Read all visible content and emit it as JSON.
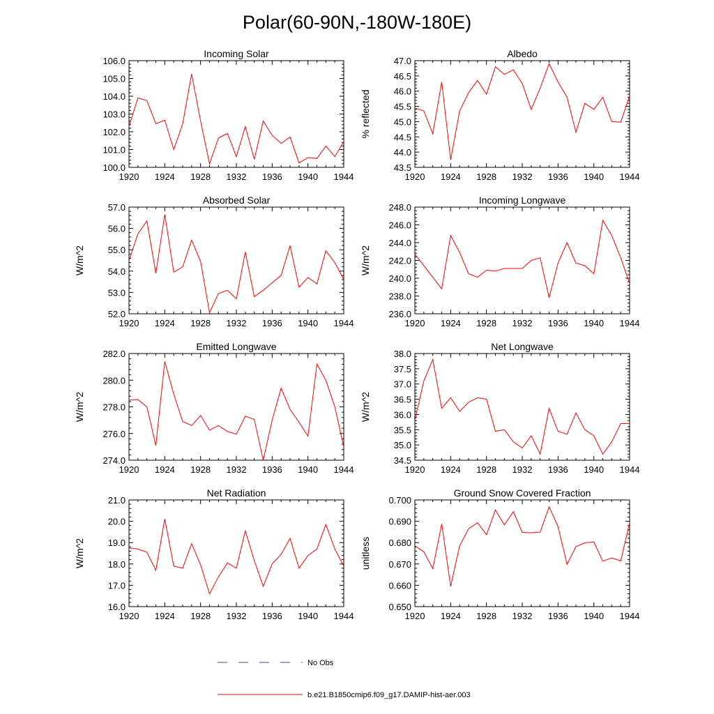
{
  "title": "Polar(60-90N,-180W-180E)",
  "colors": {
    "series": "#ff0000",
    "obs": "#4040a0",
    "axis": "#000000"
  },
  "legend": {
    "obs_label": "No Obs",
    "model_label": "b.e21.B1850cmip6.f09_g17.DAMIP-hist-aer.003"
  },
  "chart_data": [
    {
      "type": "line",
      "title": "Incoming Solar",
      "ylabel": "",
      "xlim": [
        1920,
        1944
      ],
      "ylim": [
        100.0,
        106.0
      ],
      "xticks": [
        "1920",
        "1924",
        "1928",
        "1932",
        "1936",
        "1940",
        "1944"
      ],
      "yticks": [
        "100.0",
        "101.0",
        "102.0",
        "103.0",
        "104.0",
        "105.0",
        "106.0"
      ],
      "x": [
        1920,
        1921,
        1922,
        1923,
        1924,
        1925,
        1926,
        1927,
        1928,
        1929,
        1930,
        1931,
        1932,
        1933,
        1934,
        1935,
        1936,
        1937,
        1938,
        1939,
        1940,
        1941,
        1942,
        1943,
        1944
      ],
      "series": [
        {
          "name": "b.e21.B1850cmip6.f09_g17.DAMIP-hist-aer.003",
          "values": [
            102.3,
            103.9,
            103.75,
            102.45,
            102.65,
            101.0,
            102.45,
            105.25,
            102.6,
            100.2,
            101.65,
            101.9,
            100.6,
            102.3,
            100.45,
            102.6,
            101.8,
            101.35,
            101.7,
            100.25,
            100.55,
            100.5,
            101.2,
            100.6,
            101.45
          ]
        }
      ]
    },
    {
      "type": "line",
      "title": "Albedo",
      "ylabel": "% reflected",
      "xlim": [
        1920,
        1944
      ],
      "ylim": [
        43.5,
        47.0
      ],
      "xticks": [
        "1920",
        "1924",
        "1928",
        "1932",
        "1936",
        "1940",
        "1944"
      ],
      "yticks": [
        "43.5",
        "44.0",
        "44.5",
        "45.0",
        "45.5",
        "46.0",
        "46.5",
        "47.0"
      ],
      "x": [
        1920,
        1921,
        1922,
        1923,
        1924,
        1925,
        1926,
        1927,
        1928,
        1929,
        1930,
        1931,
        1932,
        1933,
        1934,
        1935,
        1936,
        1937,
        1938,
        1939,
        1940,
        1941,
        1942,
        1943,
        1944
      ],
      "series": [
        {
          "name": "b.e21.B1850cmip6.f09_g17.DAMIP-hist-aer.003",
          "values": [
            45.45,
            45.35,
            44.6,
            46.3,
            43.75,
            45.35,
            45.95,
            46.35,
            45.9,
            46.8,
            46.55,
            46.7,
            46.25,
            45.4,
            46.1,
            46.9,
            46.3,
            45.8,
            44.65,
            45.6,
            45.4,
            45.8,
            45.0,
            44.98,
            45.85
          ]
        }
      ]
    },
    {
      "type": "line",
      "title": "Absorbed Solar",
      "ylabel": "W/m^2",
      "xlim": [
        1920,
        1944
      ],
      "ylim": [
        52.0,
        57.0
      ],
      "xticks": [
        "1920",
        "1924",
        "1928",
        "1932",
        "1936",
        "1940",
        "1944"
      ],
      "yticks": [
        "52.0",
        "53.0",
        "54.0",
        "55.0",
        "56.0",
        "57.0"
      ],
      "x": [
        1920,
        1921,
        1922,
        1923,
        1924,
        1925,
        1926,
        1927,
        1928,
        1929,
        1930,
        1931,
        1932,
        1933,
        1934,
        1935,
        1936,
        1937,
        1938,
        1939,
        1940,
        1941,
        1942,
        1943,
        1944
      ],
      "series": [
        {
          "name": "b.e21.B1850cmip6.f09_g17.DAMIP-hist-aer.003",
          "values": [
            54.5,
            55.75,
            56.35,
            53.9,
            56.65,
            53.95,
            54.2,
            55.45,
            54.45,
            52.05,
            52.95,
            53.1,
            52.7,
            54.9,
            52.8,
            53.1,
            53.45,
            53.8,
            55.2,
            53.25,
            53.7,
            53.4,
            54.95,
            54.4,
            53.6
          ]
        }
      ]
    },
    {
      "type": "line",
      "title": "Incoming Longwave",
      "ylabel": "W/m^2",
      "xlim": [
        1920,
        1944
      ],
      "ylim": [
        236.0,
        248.0
      ],
      "xticks": [
        "1920",
        "1924",
        "1928",
        "1932",
        "1936",
        "1940",
        "1944"
      ],
      "yticks": [
        "236.0",
        "238.0",
        "240.0",
        "242.0",
        "244.0",
        "246.0",
        "248.0"
      ],
      "x": [
        1920,
        1921,
        1922,
        1923,
        1924,
        1925,
        1926,
        1927,
        1928,
        1929,
        1930,
        1931,
        1932,
        1933,
        1934,
        1935,
        1936,
        1937,
        1938,
        1939,
        1940,
        1941,
        1942,
        1943,
        1944
      ],
      "series": [
        {
          "name": "b.e21.B1850cmip6.f09_g17.DAMIP-hist-aer.003",
          "values": [
            242.7,
            241.4,
            240.1,
            238.8,
            244.8,
            242.9,
            240.5,
            240.1,
            240.9,
            240.8,
            241.1,
            241.1,
            241.1,
            242.0,
            242.3,
            237.8,
            241.7,
            244.0,
            241.7,
            241.4,
            240.5,
            246.5,
            244.8,
            242.3,
            239.4
          ]
        }
      ]
    },
    {
      "type": "line",
      "title": "Emitted Longwave",
      "ylabel": "W/m^2",
      "xlim": [
        1920,
        1944
      ],
      "ylim": [
        274.0,
        282.0
      ],
      "xticks": [
        "1920",
        "1924",
        "1928",
        "1932",
        "1936",
        "1940",
        "1944"
      ],
      "yticks": [
        "274.0",
        "276.0",
        "278.0",
        "280.0",
        "282.0"
      ],
      "x": [
        1920,
        1921,
        1922,
        1923,
        1924,
        1925,
        1926,
        1927,
        1928,
        1929,
        1930,
        1931,
        1932,
        1933,
        1934,
        1935,
        1936,
        1937,
        1938,
        1939,
        1940,
        1941,
        1942,
        1943,
        1944
      ],
      "series": [
        {
          "name": "b.e21.B1850cmip6.f09_g17.DAMIP-hist-aer.003",
          "values": [
            278.5,
            278.55,
            278.0,
            275.1,
            281.4,
            278.95,
            276.9,
            276.6,
            277.35,
            276.25,
            276.6,
            276.15,
            275.95,
            277.3,
            277.05,
            274.0,
            277.0,
            279.4,
            277.8,
            276.85,
            275.8,
            281.2,
            280.0,
            278.0,
            275.0
          ]
        }
      ]
    },
    {
      "type": "line",
      "title": "Net Longwave",
      "ylabel": "W/m^2",
      "xlim": [
        1920,
        1944
      ],
      "ylim": [
        34.5,
        38.0
      ],
      "xticks": [
        "1920",
        "1924",
        "1928",
        "1932",
        "1936",
        "1940",
        "1944"
      ],
      "yticks": [
        "34.5",
        "35.0",
        "35.5",
        "36.0",
        "36.5",
        "37.0",
        "37.5",
        "38.0"
      ],
      "x": [
        1920,
        1921,
        1922,
        1923,
        1924,
        1925,
        1926,
        1927,
        1928,
        1929,
        1930,
        1931,
        1932,
        1933,
        1934,
        1935,
        1936,
        1937,
        1938,
        1939,
        1940,
        1941,
        1942,
        1943,
        1944
      ],
      "series": [
        {
          "name": "b.e21.B1850cmip6.f09_g17.DAMIP-hist-aer.003",
          "values": [
            35.8,
            37.1,
            37.8,
            36.2,
            36.55,
            36.1,
            36.4,
            36.55,
            36.5,
            35.45,
            35.5,
            35.1,
            34.9,
            35.3,
            34.7,
            36.2,
            35.45,
            35.35,
            36.05,
            35.5,
            35.3,
            34.7,
            35.1,
            35.7,
            35.7
          ]
        }
      ]
    },
    {
      "type": "line",
      "title": "Net Radiation",
      "ylabel": "W/m^2",
      "xlim": [
        1920,
        1944
      ],
      "ylim": [
        16.0,
        21.0
      ],
      "xticks": [
        "1920",
        "1924",
        "1928",
        "1932",
        "1936",
        "1940",
        "1944"
      ],
      "yticks": [
        "16.0",
        "17.0",
        "18.0",
        "19.0",
        "20.0",
        "21.0"
      ],
      "x": [
        1920,
        1921,
        1922,
        1923,
        1924,
        1925,
        1926,
        1927,
        1928,
        1929,
        1930,
        1931,
        1932,
        1933,
        1934,
        1935,
        1936,
        1937,
        1938,
        1939,
        1940,
        1941,
        1942,
        1943,
        1944
      ],
      "series": [
        {
          "name": "b.e21.B1850cmip6.f09_g17.DAMIP-hist-aer.003",
          "values": [
            18.75,
            18.7,
            18.55,
            17.7,
            20.1,
            17.9,
            17.8,
            18.95,
            17.95,
            16.6,
            17.4,
            18.05,
            17.8,
            19.55,
            18.15,
            16.95,
            18.0,
            18.45,
            19.2,
            17.8,
            18.4,
            18.7,
            19.85,
            18.7,
            17.9
          ]
        }
      ]
    },
    {
      "type": "line",
      "title": "Ground Snow Covered Fraction",
      "ylabel": "unitless",
      "xlim": [
        1920,
        1944
      ],
      "ylim": [
        0.65,
        0.7
      ],
      "xticks": [
        "1920",
        "1924",
        "1928",
        "1932",
        "1936",
        "1940",
        "1944"
      ],
      "yticks": [
        "0.650",
        "0.660",
        "0.670",
        "0.680",
        "0.690",
        "0.700"
      ],
      "x": [
        1920,
        1921,
        1922,
        1923,
        1924,
        1925,
        1926,
        1927,
        1928,
        1929,
        1930,
        1931,
        1932,
        1933,
        1934,
        1935,
        1936,
        1937,
        1938,
        1939,
        1940,
        1941,
        1942,
        1943,
        1944
      ],
      "series": [
        {
          "name": "b.e21.B1850cmip6.f09_g17.DAMIP-hist-aer.003",
          "values": [
            0.6785,
            0.6757,
            0.6678,
            0.6888,
            0.6595,
            0.6785,
            0.6865,
            0.6893,
            0.6837,
            0.6953,
            0.6883,
            0.6945,
            0.6848,
            0.6846,
            0.6849,
            0.6968,
            0.6875,
            0.6698,
            0.6781,
            0.6799,
            0.6803,
            0.6713,
            0.6728,
            0.6714,
            0.6893
          ]
        }
      ]
    }
  ]
}
